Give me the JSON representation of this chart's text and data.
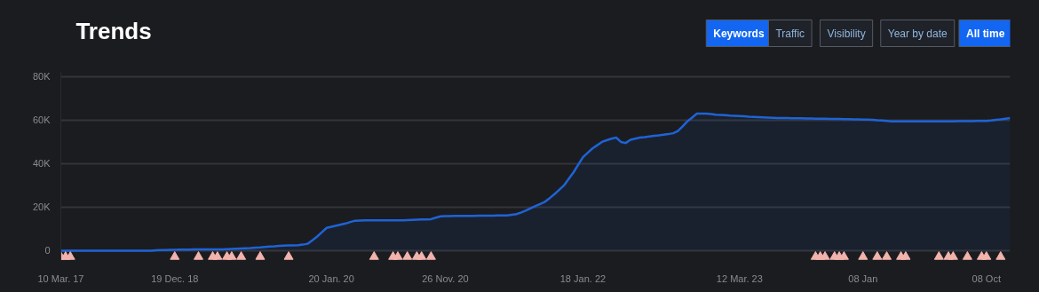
{
  "chart_data": {
    "type": "area",
    "title": "Trends",
    "annotations": [
      "Keywords",
      "Traffic",
      "Visibility",
      "Year by date",
      "All time"
    ],
    "categories": [
      "10 Mar. 17",
      null,
      null,
      null,
      null,
      null,
      null,
      null,
      null,
      null,
      null,
      null,
      null,
      null,
      null,
      null,
      null,
      null,
      null,
      null,
      null,
      null,
      null,
      null,
      "19 Dec. 18",
      null,
      null,
      null,
      null,
      null,
      null,
      null,
      null,
      null,
      null,
      null,
      null,
      null,
      null,
      null,
      null,
      null,
      null,
      null,
      null,
      null,
      null,
      null,
      null,
      null,
      null,
      null,
      null,
      null,
      null,
      null,
      null,
      "20 Jan. 20",
      null,
      null,
      null,
      null,
      null,
      null,
      null,
      null,
      null,
      null,
      null,
      null,
      null,
      null,
      null,
      null,
      null,
      null,
      null,
      null,
      null,
      null,
      null,
      "26 Nov. 20",
      null,
      null,
      null,
      null,
      null,
      null,
      null,
      null,
      null,
      null,
      null,
      null,
      null,
      null,
      null,
      null,
      null,
      null,
      null,
      null,
      null,
      null,
      null,
      null,
      null,
      null,
      null,
      null,
      "18 Jan. 22",
      null,
      null,
      null,
      null,
      null,
      null,
      null,
      null,
      null,
      null,
      null,
      null,
      null,
      null,
      null,
      null,
      null,
      null,
      null,
      null,
      null,
      null,
      null,
      null,
      null,
      null,
      null,
      null,
      null,
      null,
      null,
      null,
      "12 Mar. 23",
      null,
      null,
      null,
      null,
      null,
      null,
      null,
      null,
      null,
      null,
      null,
      null,
      null,
      null,
      null,
      null,
      null,
      null,
      null,
      null,
      null,
      null,
      null,
      null,
      null,
      "08 Jan",
      null,
      null,
      null,
      null,
      null,
      null,
      null,
      null,
      null,
      null,
      null,
      null,
      null,
      null,
      null,
      null,
      null,
      null,
      null,
      null,
      null,
      null,
      null,
      null,
      null,
      "08 Oct",
      null,
      null,
      null,
      null,
      null
    ],
    "ylim": [
      -4500,
      82000
    ],
    "yticks": [
      {
        "value": 0,
        "label": "0"
      },
      {
        "value": 20000,
        "label": "20K"
      },
      {
        "value": 40000,
        "label": "40K"
      },
      {
        "value": 60000,
        "label": "60K"
      },
      {
        "value": 80000,
        "label": "80K"
      }
    ],
    "grid": "y",
    "series": [
      {
        "color": "#1f63d6",
        "values": [
          0,
          0,
          0,
          0,
          0,
          0,
          0,
          0,
          0,
          0,
          0,
          0,
          0,
          0,
          0,
          0,
          0,
          0,
          0,
          0,
          200,
          250,
          300,
          350,
          400,
          450,
          500,
          530,
          560,
          580,
          590,
          600,
          600,
          600,
          600,
          700,
          800,
          900,
          1000,
          1100,
          1200,
          1400,
          1500,
          1700,
          1900,
          2000,
          2200,
          2300,
          2400,
          2450,
          2500,
          2800,
          3200,
          4800,
          6500,
          8500,
          10500,
          11000,
          11500,
          12000,
          12500,
          13200,
          13800,
          13900,
          14000,
          14000,
          14000,
          14000,
          14000,
          14000,
          14000,
          14000,
          14000,
          14100,
          14200,
          14300,
          14400,
          14400,
          14500,
          15200,
          15800,
          15900,
          15900,
          16000,
          16000,
          16000,
          16000,
          16000,
          16100,
          16100,
          16100,
          16100,
          16200,
          16200,
          16200,
          16500,
          16800,
          17600,
          18500,
          19500,
          20500,
          21500,
          22500,
          24200,
          26000,
          28000,
          30000,
          33000,
          36000,
          39500,
          43000,
          45000,
          47000,
          48500,
          50000,
          50800,
          51500,
          52000,
          50000,
          49500,
          51000,
          51500,
          52000,
          52200,
          52500,
          52800,
          53000,
          53300,
          53600,
          54000,
          55000,
          57200,
          59500,
          61200,
          63000,
          63000,
          63000,
          62800,
          62500,
          62400,
          62300,
          62100,
          62000,
          61900,
          61800,
          61600,
          61500,
          61400,
          61300,
          61200,
          61100,
          61000,
          61000,
          61000,
          60900,
          60900,
          60900,
          60800,
          60800,
          60700,
          60700,
          60700,
          60600,
          60600,
          60600,
          60500,
          60500,
          60400,
          60400,
          60300,
          60300,
          60200,
          60000,
          59900,
          59700,
          59500,
          59500,
          59500,
          59500,
          59500,
          59500,
          59500,
          59500,
          59500,
          59500,
          59500,
          59500,
          59500,
          59500,
          59600,
          59600,
          59600,
          59600,
          59700,
          59700,
          59700,
          59900,
          60200,
          60400,
          60700,
          61000
        ]
      },
      {
        "type": "scatter",
        "marker": "triangle",
        "color": "#f2b3ad",
        "values": [
          -2800,
          -2800,
          -2800,
          null,
          null,
          null,
          null,
          null,
          null,
          null,
          null,
          null,
          null,
          null,
          null,
          null,
          null,
          null,
          null,
          null,
          null,
          null,
          null,
          null,
          -2800,
          null,
          null,
          null,
          null,
          -2800,
          null,
          null,
          -2800,
          -2800,
          null,
          -2800,
          -2800,
          null,
          -2800,
          null,
          null,
          null,
          -2800,
          null,
          null,
          null,
          null,
          null,
          -2800,
          null,
          null,
          null,
          null,
          null,
          null,
          null,
          null,
          null,
          null,
          null,
          null,
          null,
          null,
          null,
          null,
          null,
          -2800,
          null,
          null,
          null,
          -2800,
          -2800,
          null,
          -2800,
          null,
          -2800,
          -2800,
          null,
          -2800,
          null,
          null,
          null,
          null,
          null,
          null,
          null,
          null,
          null,
          null,
          null,
          null,
          null,
          null,
          null,
          null,
          null,
          null,
          null,
          null,
          null,
          null,
          null,
          null,
          null,
          null,
          null,
          null,
          null,
          null,
          null,
          null,
          null,
          null,
          null,
          null,
          null,
          null,
          null,
          null,
          null,
          null,
          null,
          null,
          null,
          null,
          null,
          null,
          null,
          null,
          null,
          null,
          null,
          null,
          null,
          null,
          null,
          null,
          null,
          null,
          null,
          null,
          null,
          null,
          null,
          null,
          null,
          null,
          null,
          null,
          null,
          null,
          null,
          null,
          null,
          null,
          null,
          null,
          null,
          null,
          -2800,
          -2800,
          -2800,
          null,
          -2800,
          -2800,
          -2800,
          null,
          null,
          null,
          -2800,
          null,
          null,
          -2800,
          null,
          -2800,
          null,
          null,
          -2800,
          -2800,
          null,
          null,
          null,
          null,
          null,
          null,
          -2800,
          null,
          -2800,
          -2800,
          null,
          null,
          -2800,
          null,
          null,
          -2800,
          -2800,
          null,
          null,
          -2800,
          null,
          null
        ]
      }
    ]
  }
}
